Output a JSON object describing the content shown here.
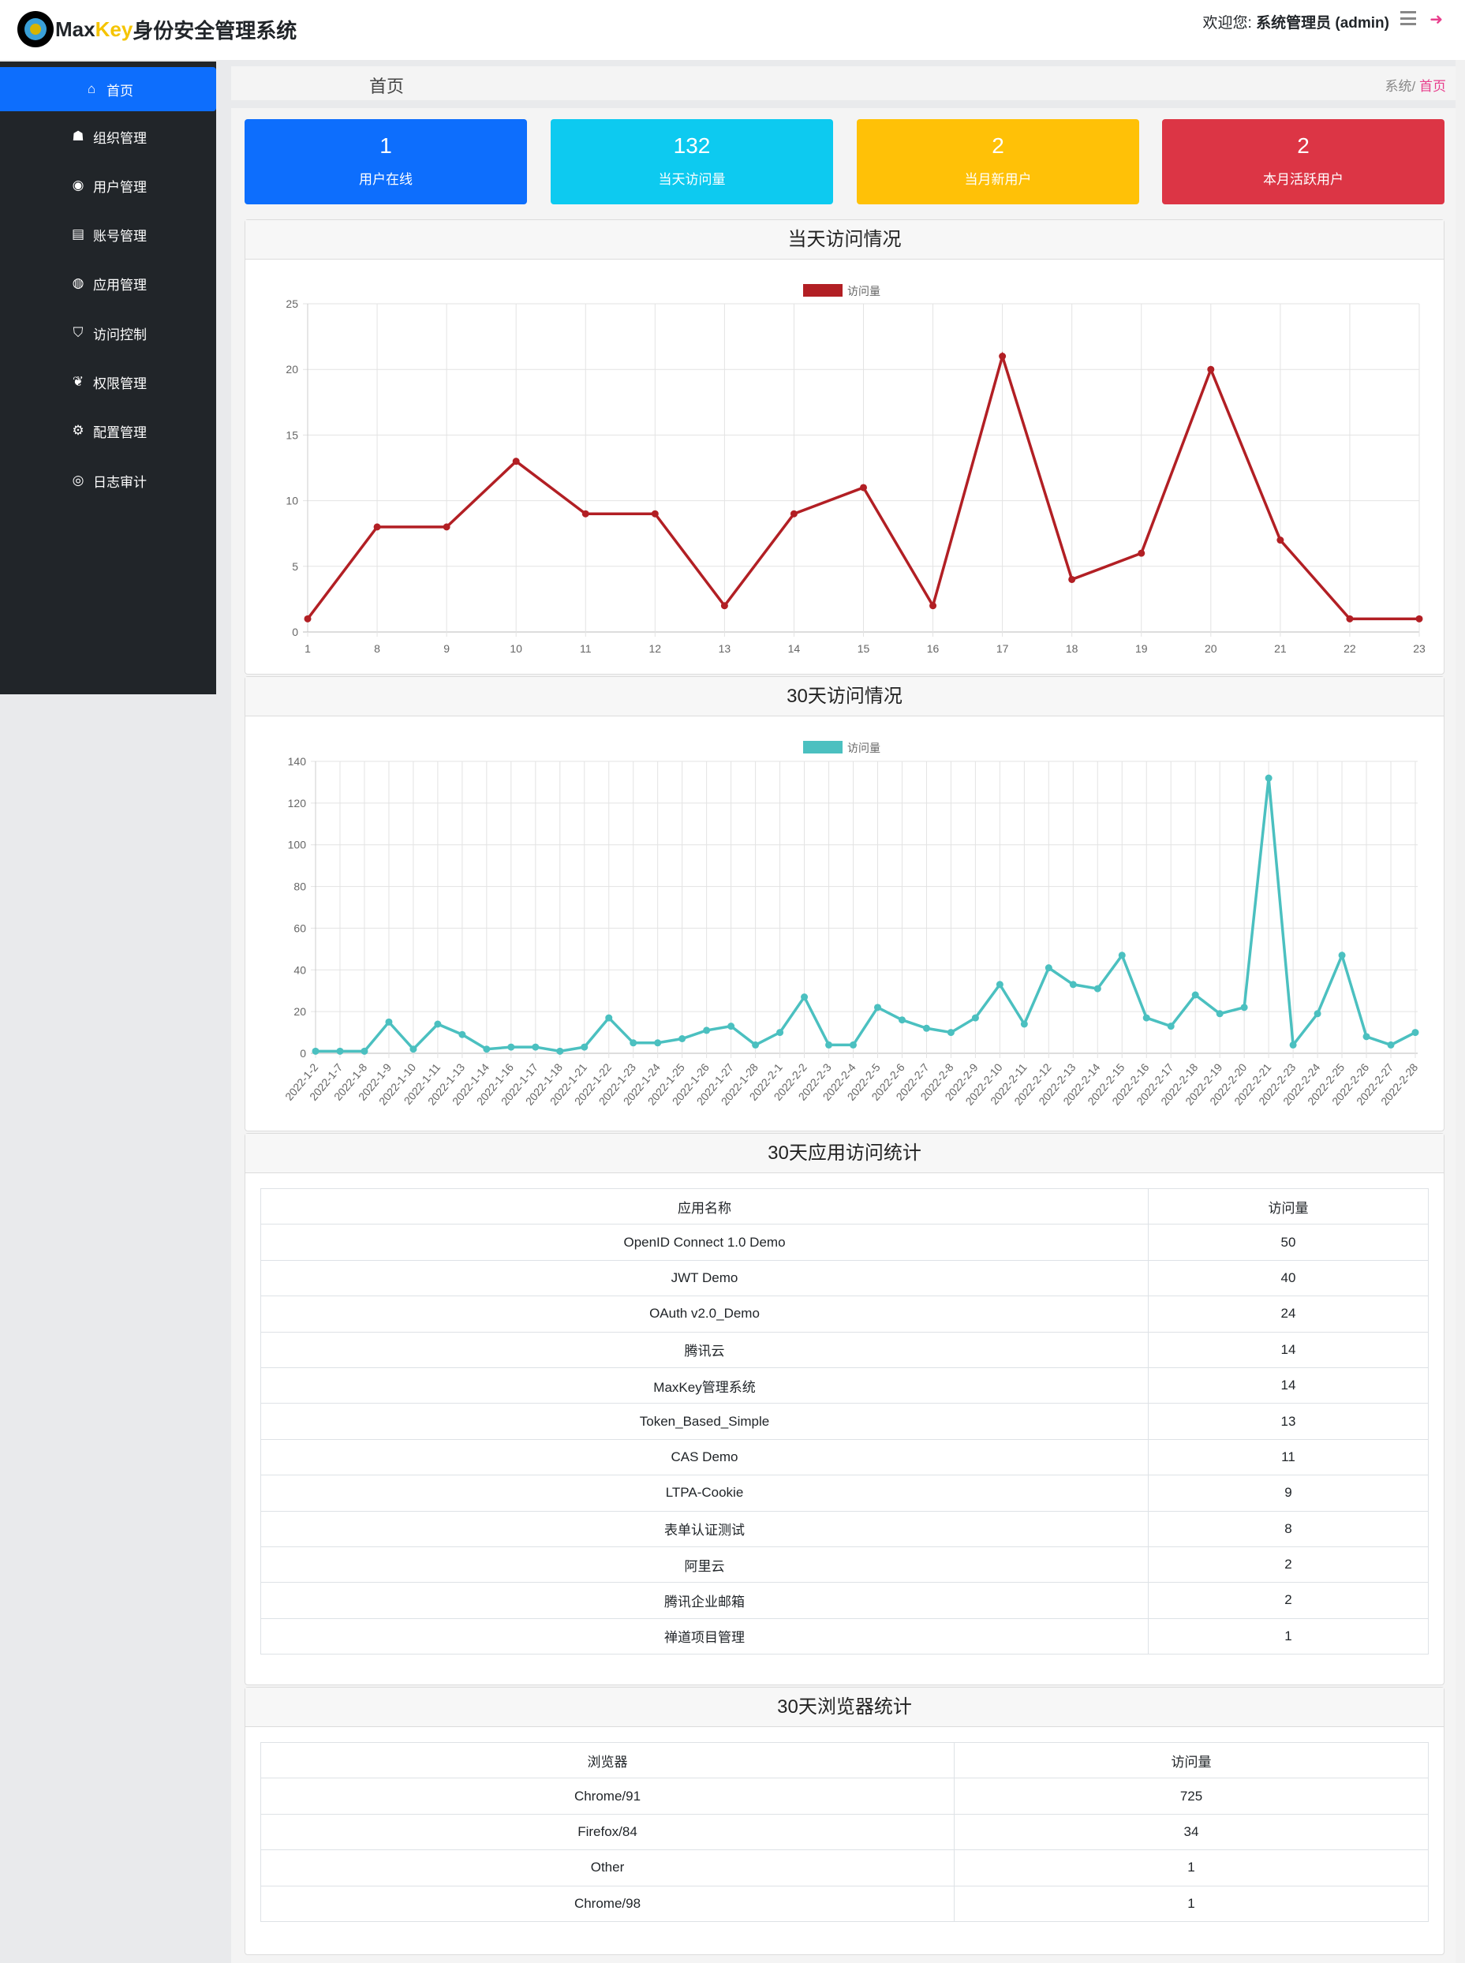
{
  "header": {
    "logo_max": "Max",
    "logo_key": "Key",
    "logo_title": "身份安全管理系统",
    "welcome_label": "欢迎您:",
    "user": "系统管理员 (admin)"
  },
  "sidebar": {
    "items": [
      {
        "label": "首页",
        "icon": "home-icon",
        "active": true
      },
      {
        "label": "组织管理",
        "icon": "sitemap-icon"
      },
      {
        "label": "用户管理",
        "icon": "user-circle-icon"
      },
      {
        "label": "账号管理",
        "icon": "id-card-icon"
      },
      {
        "label": "应用管理",
        "icon": "globe-icon"
      },
      {
        "label": "访问控制",
        "icon": "shield-icon"
      },
      {
        "label": "权限管理",
        "icon": "leaf-icon"
      },
      {
        "label": "配置管理",
        "icon": "cogs-icon"
      },
      {
        "label": "日志审计",
        "icon": "eye-icon"
      }
    ]
  },
  "breadcrumb": {
    "title": "首页",
    "parent": "系统",
    "sep": "/",
    "current": "首页"
  },
  "stats": [
    {
      "value": "1",
      "label": "用户在线",
      "color": "#0d6efd"
    },
    {
      "value": "132",
      "label": "当天访问量",
      "color": "#0dcaf0"
    },
    {
      "value": "2",
      "label": "当月新用户",
      "color": "#ffc107"
    },
    {
      "value": "2",
      "label": "本月活跃用户",
      "color": "#dc3545"
    }
  ],
  "chart_data": [
    {
      "type": "line",
      "title": "当天访问情况",
      "legend": "访问量",
      "color": "#b21f24",
      "ylim": [
        0,
        25
      ],
      "yticks": [
        0,
        5,
        10,
        15,
        20,
        25
      ],
      "grid": true,
      "legend_position": "top",
      "categories": [
        "1",
        "8",
        "9",
        "10",
        "11",
        "12",
        "13",
        "14",
        "15",
        "16",
        "17",
        "18",
        "19",
        "20",
        "21",
        "22",
        "23"
      ],
      "values": [
        1,
        8,
        8,
        13,
        9,
        9,
        2,
        9,
        11,
        2,
        21,
        4,
        6,
        20,
        7,
        1,
        1
      ]
    },
    {
      "type": "line",
      "title": "30天访问情况",
      "legend": "访问量",
      "color": "#4bc0c0",
      "ylim": [
        0,
        140
      ],
      "yticks": [
        0,
        20,
        40,
        60,
        80,
        100,
        120,
        140
      ],
      "grid": true,
      "legend_position": "top",
      "categories": [
        "2022-1-2",
        "2022-1-7",
        "2022-1-8",
        "2022-1-9",
        "2022-1-10",
        "2022-1-11",
        "2022-1-13",
        "2022-1-14",
        "2022-1-16",
        "2022-1-17",
        "2022-1-18",
        "2022-1-21",
        "2022-1-22",
        "2022-1-23",
        "2022-1-24",
        "2022-1-25",
        "2022-1-26",
        "2022-1-27",
        "2022-1-28",
        "2022-2-1",
        "2022-2-2",
        "2022-2-3",
        "2022-2-4",
        "2022-2-5",
        "2022-2-6",
        "2022-2-7",
        "2022-2-8",
        "2022-2-9",
        "2022-2-10",
        "2022-2-11",
        "2022-2-12",
        "2022-2-13",
        "2022-2-14",
        "2022-2-15",
        "2022-2-16",
        "2022-2-17",
        "2022-2-18",
        "2022-2-19",
        "2022-2-20",
        "2022-2-21",
        "2022-2-23",
        "2022-2-24",
        "2022-2-25",
        "2022-2-26",
        "2022-2-27",
        "2022-2-28"
      ],
      "values": [
        1,
        1,
        1,
        15,
        2,
        14,
        9,
        2,
        3,
        3,
        1,
        3,
        17,
        5,
        5,
        7,
        11,
        13,
        4,
        10,
        27,
        4,
        4,
        22,
        16,
        12,
        10,
        17,
        33,
        14,
        41,
        33,
        31,
        47,
        17,
        13,
        28,
        19,
        22,
        132,
        4,
        19,
        47,
        8,
        4,
        10
      ]
    }
  ],
  "app_table": {
    "title": "30天应用访问统计",
    "headers": [
      "应用名称",
      "访问量"
    ],
    "rows": [
      [
        "OpenID Connect 1.0 Demo",
        "50"
      ],
      [
        "JWT Demo",
        "40"
      ],
      [
        "OAuth v2.0_Demo",
        "24"
      ],
      [
        "腾讯云",
        "14"
      ],
      [
        "MaxKey管理系统",
        "14"
      ],
      [
        "Token_Based_Simple",
        "13"
      ],
      [
        "CAS Demo",
        "11"
      ],
      [
        "LTPA-Cookie",
        "9"
      ],
      [
        "表单认证测试",
        "8"
      ],
      [
        "阿里云",
        "2"
      ],
      [
        "腾讯企业邮箱",
        "2"
      ],
      [
        "禅道项目管理",
        "1"
      ]
    ]
  },
  "browser_table": {
    "title": "30天浏览器统计",
    "headers": [
      "浏览器",
      "访问量"
    ],
    "rows": [
      [
        "Chrome/91",
        "725"
      ],
      [
        "Firefox/84",
        "34"
      ],
      [
        "Other",
        "1"
      ],
      [
        "Chrome/98",
        "1"
      ]
    ]
  }
}
